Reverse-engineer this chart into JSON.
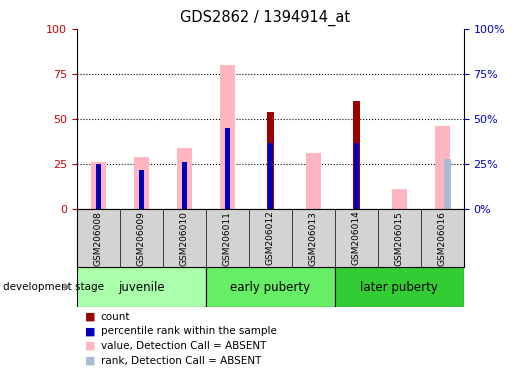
{
  "title": "GDS2862 / 1394914_at",
  "samples": [
    "GSM206008",
    "GSM206009",
    "GSM206010",
    "GSM206011",
    "GSM206012",
    "GSM206013",
    "GSM206014",
    "GSM206015",
    "GSM206016"
  ],
  "groups": [
    {
      "label": "juvenile",
      "indices": [
        0,
        1,
        2
      ],
      "color": "#aaffaa"
    },
    {
      "label": "early puberty",
      "indices": [
        3,
        4,
        5
      ],
      "color": "#66ee66"
    },
    {
      "label": "later puberty",
      "indices": [
        6,
        7,
        8
      ],
      "color": "#33cc33"
    }
  ],
  "count_values": [
    0,
    0,
    0,
    0,
    54,
    0,
    60,
    0,
    0
  ],
  "rank_values": [
    25,
    22,
    26,
    45,
    37,
    0,
    37,
    0,
    0
  ],
  "value_absent": [
    26,
    29,
    34,
    80,
    0,
    31,
    0,
    11,
    46
  ],
  "rank_absent": [
    0,
    0,
    0,
    0,
    0,
    0,
    0,
    0,
    28
  ],
  "yticks": [
    0,
    25,
    50,
    75,
    100
  ],
  "count_color": "#9B0000",
  "rank_color": "#0000BB",
  "value_absent_color": "#FFB6C1",
  "rank_absent_color": "#AABBD8",
  "bg_gray": "#D3D3D3",
  "label_color_left": "#CC0000",
  "label_color_right": "#0000CC"
}
